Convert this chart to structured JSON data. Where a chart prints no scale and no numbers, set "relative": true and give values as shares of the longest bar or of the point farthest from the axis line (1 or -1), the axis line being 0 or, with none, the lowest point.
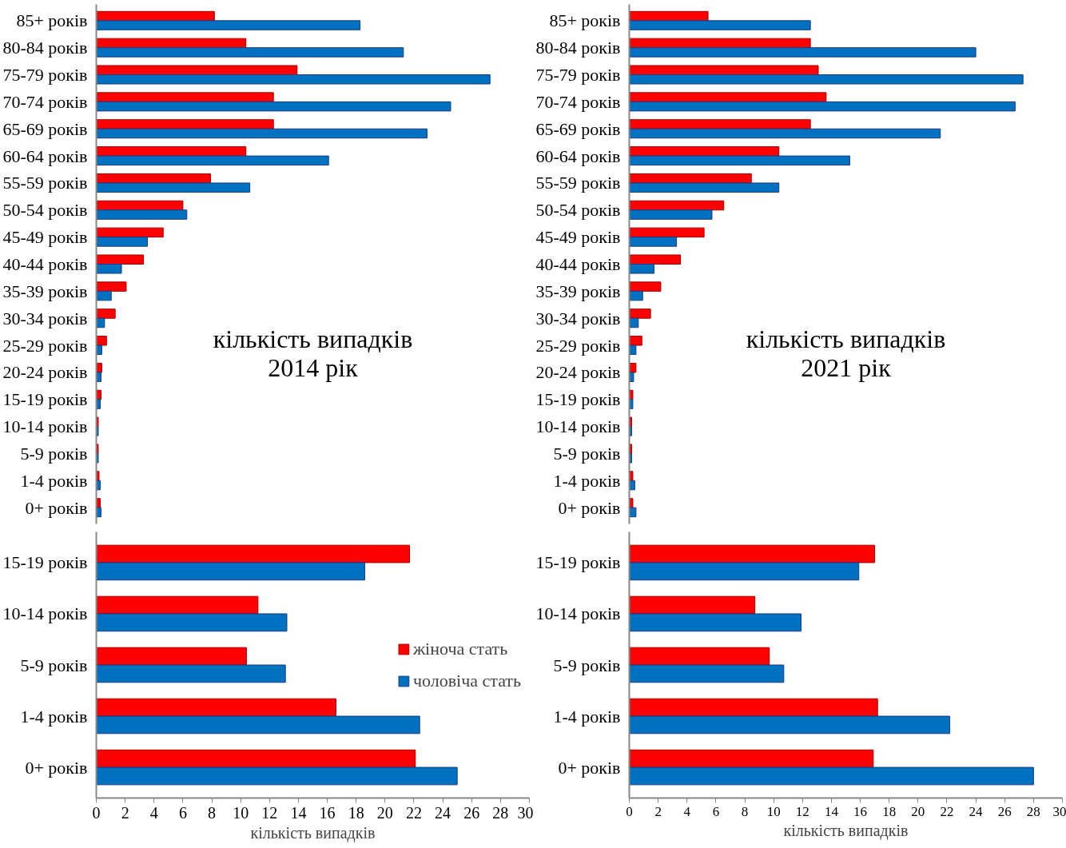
{
  "chart_data": [
    {
      "type": "bar",
      "orientation": "horizontal",
      "relative": true,
      "title": "кількість випадків",
      "subtitle": "2014 рік",
      "categories": [
        "85+ років",
        "80-84 років",
        "75-79 років",
        "70-74 років",
        "65-69 років",
        "60-64 років",
        "55-59 років",
        "50-54 років",
        "45-49 років",
        "40-44 років",
        "35-39 років",
        "30-34 років",
        "25-29 років",
        "20-24 років",
        "15-19 років",
        "10-14 років",
        "5-9 років",
        "1-4 років",
        "0+ років"
      ],
      "series": [
        {
          "color": "#ff0000",
          "values": [
            0.3,
            0.38,
            0.51,
            0.45,
            0.45,
            0.38,
            0.29,
            0.22,
            0.17,
            0.12,
            0.076,
            0.048,
            0.026,
            0.014,
            0.012,
            0.005,
            0.005,
            0.007,
            0.01
          ]
        },
        {
          "color": "#0070c0",
          "values": [
            0.67,
            0.78,
            1,
            0.9,
            0.84,
            0.59,
            0.39,
            0.23,
            0.13,
            0.064,
            0.038,
            0.021,
            0.014,
            0.012,
            0.01,
            0.005,
            0.005,
            0.01,
            0.012
          ]
        }
      ]
    },
    {
      "type": "bar",
      "orientation": "horizontal",
      "relative": true,
      "title": "кількість випадків",
      "subtitle": "2021 рік",
      "categories": [
        "85+ років",
        "80-84 років",
        "75-79 років",
        "70-74 років",
        "65-69 років",
        "60-64 років",
        "55-59 років",
        "50-54 років",
        "45-49 років",
        "40-44 років",
        "35-39 років",
        "30-34 років",
        "25-29 років",
        "20-24 років",
        "15-19 років",
        "10-14 років",
        "5-9 років",
        "1-4 років",
        "0+ років"
      ],
      "series": [
        {
          "color": "#ff0000",
          "values": [
            0.2,
            0.46,
            0.48,
            0.5,
            0.46,
            0.38,
            0.31,
            0.24,
            0.19,
            0.13,
            0.08,
            0.054,
            0.032,
            0.017,
            0.009,
            0.006,
            0.006,
            0.009,
            0.009
          ]
        },
        {
          "color": "#0070c0",
          "values": [
            0.46,
            0.88,
            1,
            0.98,
            0.79,
            0.56,
            0.38,
            0.21,
            0.12,
            0.063,
            0.034,
            0.023,
            0.017,
            0.011,
            0.009,
            0.006,
            0.006,
            0.014,
            0.017
          ]
        }
      ]
    },
    {
      "type": "bar",
      "orientation": "horizontal",
      "xlabel": "кількість випадків",
      "legend": "right",
      "categories": [
        "15-19 років",
        "10-14 років",
        "5-9 років",
        "1-4 років",
        "0+ років"
      ],
      "xlim": [
        0,
        30
      ],
      "xticks": [
        0,
        2,
        4,
        6,
        8,
        10,
        12,
        14,
        16,
        18,
        20,
        22,
        24,
        26,
        28,
        30
      ],
      "series": [
        {
          "name": "жіноча стать",
          "color": "#ff0000",
          "values": [
            21.7,
            11.2,
            10.4,
            16.6,
            22.1
          ]
        },
        {
          "name": "чоловіча стать",
          "color": "#0070c0",
          "values": [
            18.6,
            13.2,
            13.1,
            22.4,
            25.0
          ]
        }
      ]
    },
    {
      "type": "bar",
      "orientation": "horizontal",
      "xlabel": "кількість випадків",
      "categories": [
        "15-19 років",
        "10-14 років",
        "5-9 років",
        "1-4 років",
        "0+ років"
      ],
      "xlim": [
        0,
        30
      ],
      "xticks": [
        0,
        2,
        4,
        6,
        8,
        10,
        12,
        14,
        16,
        18,
        20,
        22,
        24,
        26,
        28,
        30
      ],
      "series": [
        {
          "color": "#ff0000",
          "values": [
            17.0,
            8.7,
            9.7,
            17.2,
            16.9
          ]
        },
        {
          "color": "#0070c0",
          "values": [
            15.9,
            11.9,
            10.7,
            22.2,
            28.0
          ]
        }
      ]
    }
  ]
}
